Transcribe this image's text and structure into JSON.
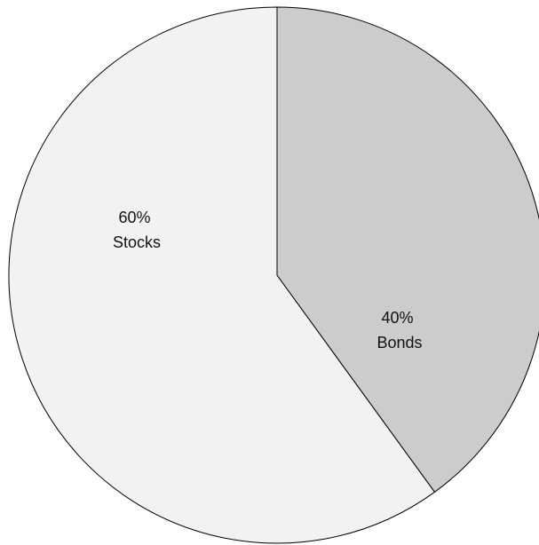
{
  "chart_data": {
    "type": "pie",
    "title": "",
    "start_angle": "12 o'clock",
    "direction": "counterclockwise",
    "slices": [
      {
        "label": "Stocks",
        "value": 60,
        "value_text": "60%",
        "color": "#f2f2f2"
      },
      {
        "label": "Bonds",
        "value": 40,
        "value_text": "40%",
        "color": "#cccccc"
      }
    ]
  }
}
